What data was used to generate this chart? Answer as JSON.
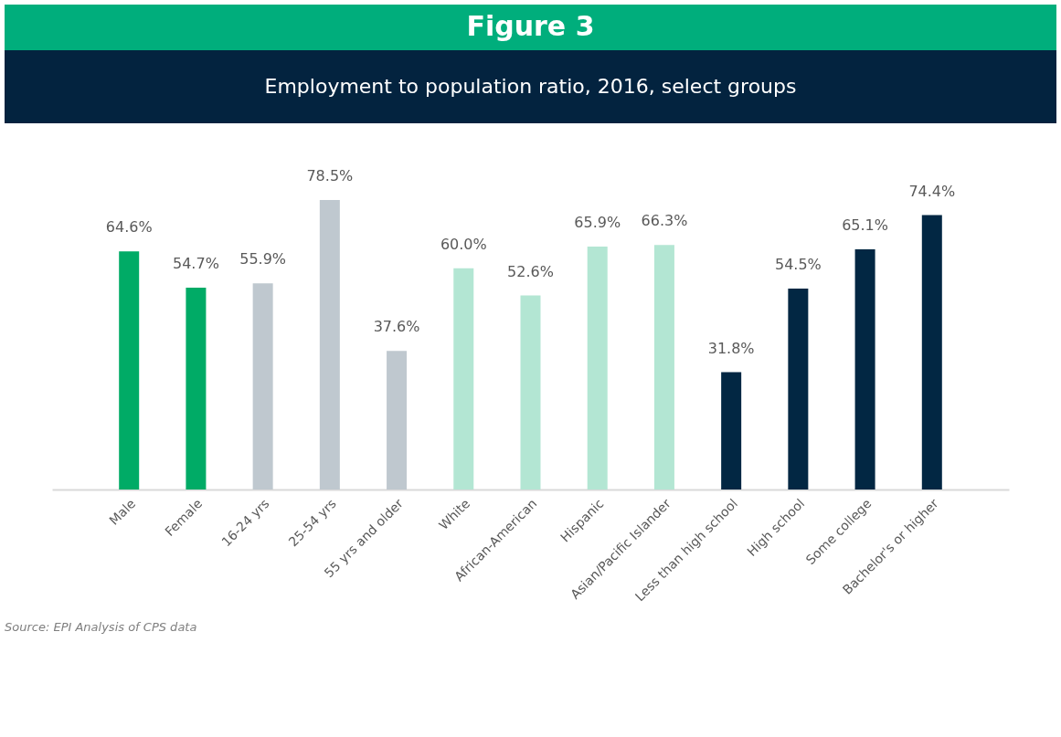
{
  "chart_data": {
    "type": "bar",
    "title": "Figure 3",
    "subtitle": "Employment to population ratio, 2016, select groups",
    "categories": [
      "Male",
      "Female",
      "16-24 yrs",
      "25-54 yrs",
      "55 yrs and older",
      "White",
      "African-American",
      "Hispanic",
      "Asian/Pacific Islander",
      "Less than high school",
      "High school",
      "Some college",
      "Bachelor's or higher"
    ],
    "values": [
      64.6,
      54.7,
      55.9,
      78.5,
      37.6,
      60.0,
      52.6,
      65.9,
      66.3,
      31.8,
      54.5,
      65.1,
      74.4
    ],
    "colors": [
      "#00ab66",
      "#00ab66",
      "#bfc8cf",
      "#bfc8cf",
      "#bfc8cf",
      "#b3e6d3",
      "#b3e6d3",
      "#b3e6d3",
      "#b3e6d3",
      "#022743",
      "#022743",
      "#022743",
      "#022743"
    ],
    "value_labels": [
      "64.6%",
      "54.7%",
      "55.9%",
      "78.5%",
      "37.6%",
      "60.0%",
      "52.6%",
      "65.9%",
      "66.3%",
      "31.8%",
      "54.5%",
      "65.1%",
      "74.4%"
    ],
    "annotations": [
      "Source: EPI Analysis of CPS data"
    ]
  }
}
